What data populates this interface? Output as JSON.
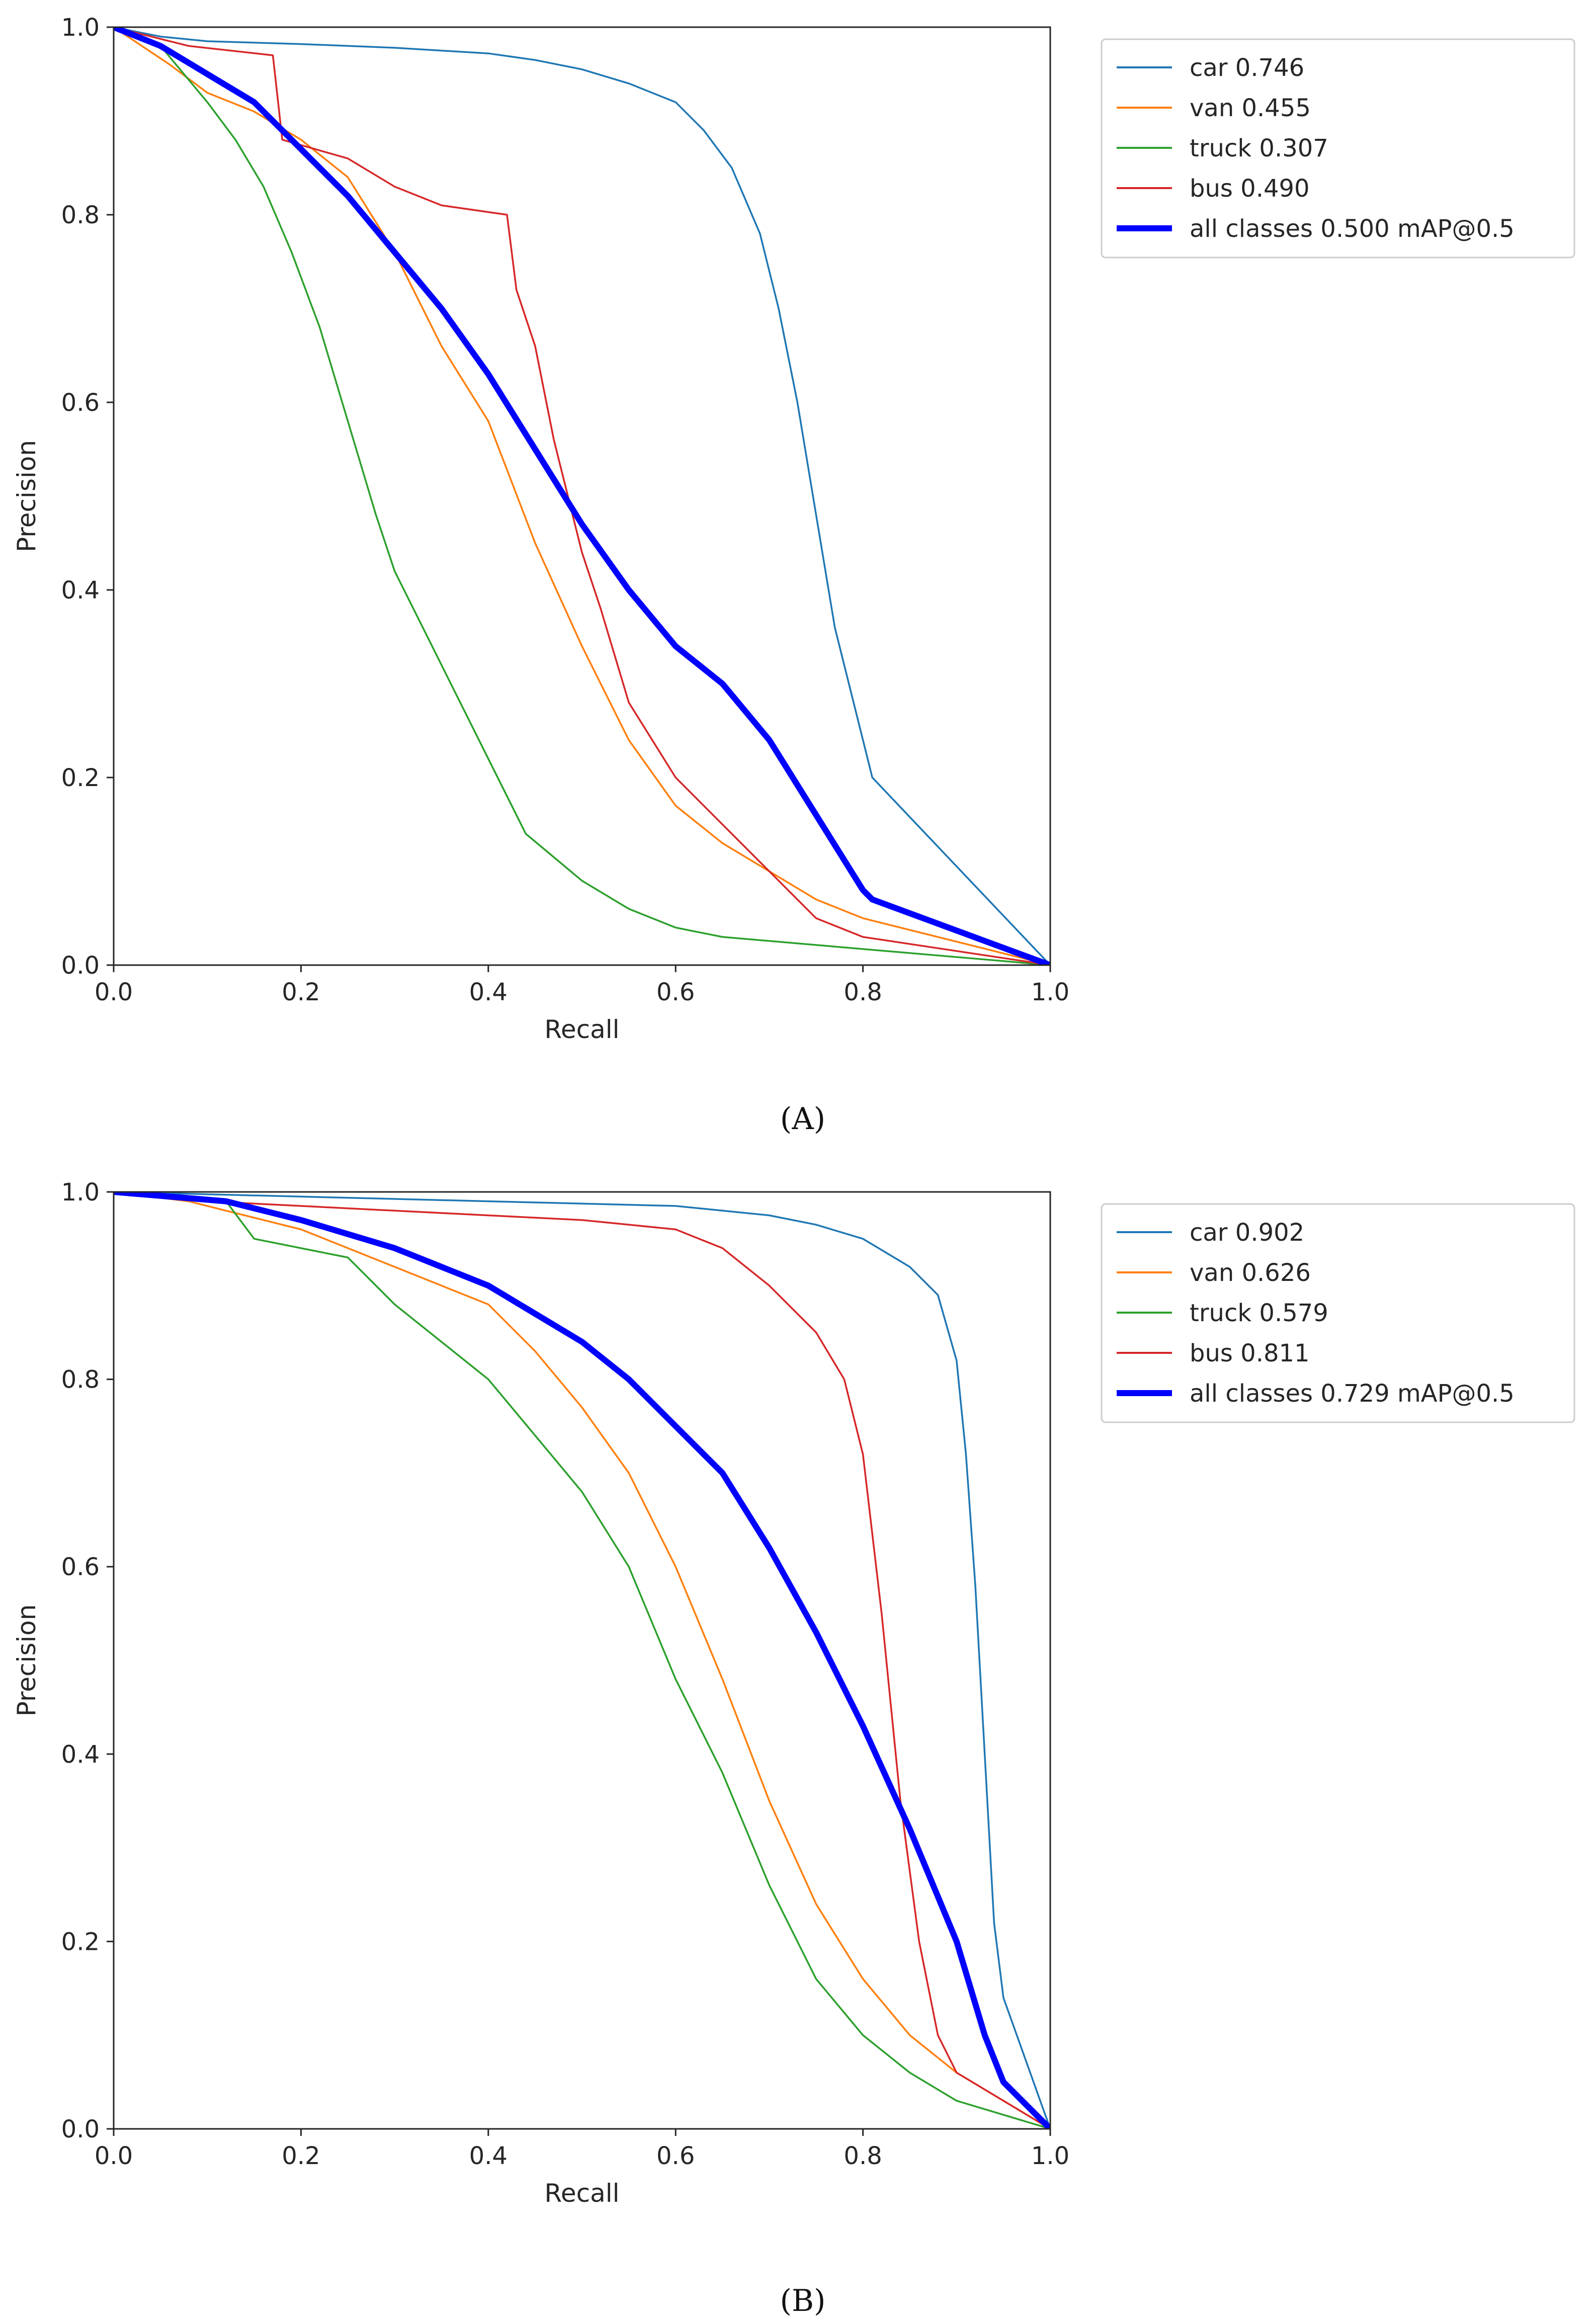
{
  "chart_data": [
    {
      "type": "line",
      "caption": "(A)",
      "xlabel": "Recall",
      "ylabel": "Precision",
      "xlim": [
        0,
        1
      ],
      "ylim": [
        0,
        1
      ],
      "xticks": [
        "0.0",
        "0.2",
        "0.4",
        "0.6",
        "0.8",
        "1.0"
      ],
      "yticks": [
        "0.0",
        "0.2",
        "0.4",
        "0.6",
        "0.8",
        "1.0"
      ],
      "legend_position": "outside-top-right",
      "series": [
        {
          "name": "car",
          "label": "car 0.746",
          "color": "#1f77b4",
          "width": 1,
          "x": [
            0,
            0.05,
            0.1,
            0.2,
            0.3,
            0.4,
            0.45,
            0.5,
            0.55,
            0.6,
            0.63,
            0.66,
            0.69,
            0.71,
            0.73,
            0.75,
            0.77,
            0.79,
            0.81,
            1.0
          ],
          "y": [
            1.0,
            0.99,
            0.985,
            0.982,
            0.978,
            0.972,
            0.965,
            0.955,
            0.94,
            0.92,
            0.89,
            0.85,
            0.78,
            0.7,
            0.6,
            0.48,
            0.36,
            0.28,
            0.2,
            0.0
          ]
        },
        {
          "name": "van",
          "label": "van 0.455",
          "color": "#ff7f0e",
          "width": 1,
          "x": [
            0,
            0.03,
            0.06,
            0.1,
            0.15,
            0.2,
            0.25,
            0.3,
            0.35,
            0.4,
            0.45,
            0.5,
            0.55,
            0.6,
            0.65,
            0.7,
            0.75,
            0.8,
            1.0
          ],
          "y": [
            1.0,
            0.98,
            0.96,
            0.93,
            0.91,
            0.88,
            0.84,
            0.76,
            0.66,
            0.58,
            0.45,
            0.34,
            0.24,
            0.17,
            0.13,
            0.1,
            0.07,
            0.05,
            0.0
          ]
        },
        {
          "name": "truck",
          "label": "truck 0.307",
          "color": "#2ca02c",
          "width": 1,
          "x": [
            0,
            0.05,
            0.1,
            0.13,
            0.16,
            0.19,
            0.22,
            0.25,
            0.28,
            0.3,
            0.33,
            0.36,
            0.4,
            0.44,
            0.5,
            0.55,
            0.6,
            0.65,
            1.0
          ],
          "y": [
            1.0,
            0.98,
            0.92,
            0.88,
            0.83,
            0.76,
            0.68,
            0.58,
            0.48,
            0.42,
            0.36,
            0.3,
            0.22,
            0.14,
            0.09,
            0.06,
            0.04,
            0.03,
            0.0
          ]
        },
        {
          "name": "bus",
          "label": "bus 0.490",
          "color": "#d62728",
          "width": 1,
          "x": [
            0,
            0.08,
            0.17,
            0.18,
            0.25,
            0.3,
            0.35,
            0.42,
            0.43,
            0.45,
            0.47,
            0.5,
            0.52,
            0.55,
            0.6,
            0.65,
            0.7,
            0.75,
            0.8,
            1.0
          ],
          "y": [
            1.0,
            0.98,
            0.97,
            0.88,
            0.86,
            0.83,
            0.81,
            0.8,
            0.72,
            0.66,
            0.56,
            0.44,
            0.38,
            0.28,
            0.2,
            0.15,
            0.1,
            0.05,
            0.03,
            0.0
          ]
        },
        {
          "name": "all classes",
          "label": "all classes 0.500 mAP@0.5",
          "color": "#0000ff",
          "width": 3.5,
          "x": [
            0,
            0.05,
            0.1,
            0.15,
            0.2,
            0.25,
            0.3,
            0.35,
            0.4,
            0.45,
            0.5,
            0.55,
            0.6,
            0.65,
            0.7,
            0.75,
            0.8,
            0.81,
            1.0
          ],
          "y": [
            1.0,
            0.98,
            0.95,
            0.92,
            0.87,
            0.82,
            0.76,
            0.7,
            0.63,
            0.55,
            0.47,
            0.4,
            0.34,
            0.3,
            0.24,
            0.16,
            0.08,
            0.07,
            0.0
          ]
        }
      ]
    },
    {
      "type": "line",
      "caption": "(B)",
      "xlabel": "Recall",
      "ylabel": "Precision",
      "xlim": [
        0,
        1
      ],
      "ylim": [
        0,
        1
      ],
      "xticks": [
        "0.0",
        "0.2",
        "0.4",
        "0.6",
        "0.8",
        "1.0"
      ],
      "yticks": [
        "0.0",
        "0.2",
        "0.4",
        "0.6",
        "0.8",
        "1.0"
      ],
      "legend_position": "outside-top-right",
      "series": [
        {
          "name": "car",
          "label": "car 0.902",
          "color": "#1f77b4",
          "width": 1,
          "x": [
            0,
            0.2,
            0.4,
            0.6,
            0.7,
            0.75,
            0.8,
            0.85,
            0.88,
            0.9,
            0.91,
            0.92,
            0.93,
            0.94,
            0.95,
            1.0
          ],
          "y": [
            1.0,
            0.995,
            0.99,
            0.985,
            0.975,
            0.965,
            0.95,
            0.92,
            0.89,
            0.82,
            0.72,
            0.58,
            0.4,
            0.22,
            0.14,
            0.0
          ]
        },
        {
          "name": "van",
          "label": "van 0.626",
          "color": "#ff7f0e",
          "width": 1,
          "x": [
            0,
            0.08,
            0.12,
            0.2,
            0.3,
            0.35,
            0.4,
            0.45,
            0.5,
            0.55,
            0.6,
            0.65,
            0.7,
            0.75,
            0.8,
            0.85,
            0.9,
            1.0
          ],
          "y": [
            1.0,
            0.99,
            0.98,
            0.96,
            0.92,
            0.9,
            0.88,
            0.83,
            0.77,
            0.7,
            0.6,
            0.48,
            0.35,
            0.24,
            0.16,
            0.1,
            0.06,
            0.0
          ]
        },
        {
          "name": "truck",
          "label": "truck 0.579",
          "color": "#2ca02c",
          "width": 1,
          "x": [
            0,
            0.12,
            0.15,
            0.25,
            0.3,
            0.35,
            0.4,
            0.45,
            0.5,
            0.55,
            0.6,
            0.65,
            0.7,
            0.75,
            0.8,
            0.85,
            0.9,
            1.0
          ],
          "y": [
            1.0,
            0.99,
            0.95,
            0.93,
            0.88,
            0.84,
            0.8,
            0.74,
            0.68,
            0.6,
            0.48,
            0.38,
            0.26,
            0.16,
            0.1,
            0.06,
            0.03,
            0.0
          ]
        },
        {
          "name": "bus",
          "label": "bus 0.811",
          "color": "#d62728",
          "width": 1,
          "x": [
            0,
            0.1,
            0.2,
            0.3,
            0.4,
            0.5,
            0.6,
            0.65,
            0.7,
            0.75,
            0.78,
            0.8,
            0.82,
            0.84,
            0.86,
            0.88,
            0.9,
            1.0
          ],
          "y": [
            1.0,
            0.99,
            0.985,
            0.98,
            0.975,
            0.97,
            0.96,
            0.94,
            0.9,
            0.85,
            0.8,
            0.72,
            0.55,
            0.35,
            0.2,
            0.1,
            0.06,
            0.0
          ]
        },
        {
          "name": "all classes",
          "label": "all classes 0.729 mAP@0.5",
          "color": "#0000ff",
          "width": 3.5,
          "x": [
            0,
            0.12,
            0.2,
            0.3,
            0.35,
            0.4,
            0.45,
            0.5,
            0.55,
            0.6,
            0.65,
            0.7,
            0.75,
            0.8,
            0.85,
            0.9,
            0.93,
            0.95,
            1.0
          ],
          "y": [
            1.0,
            0.99,
            0.97,
            0.94,
            0.92,
            0.9,
            0.87,
            0.84,
            0.8,
            0.75,
            0.7,
            0.62,
            0.53,
            0.43,
            0.32,
            0.2,
            0.1,
            0.05,
            0.0
          ]
        }
      ]
    }
  ]
}
